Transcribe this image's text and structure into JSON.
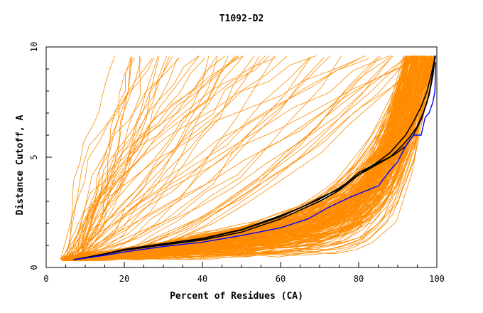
{
  "chart_data": {
    "type": "line",
    "title": "T1092-D2",
    "xlabel": "Percent of Residues (CA)",
    "ylabel": "Distance Cutoff, A",
    "xlim": [
      0,
      100
    ],
    "ylim": [
      0,
      10
    ],
    "x_ticks": [
      0,
      20,
      40,
      60,
      80,
      100
    ],
    "y_ticks": [
      0,
      5,
      10
    ],
    "grid": false,
    "legend": "none",
    "colors": {
      "background_models": "#ff8c00",
      "black_models": "#000000",
      "blue_model": "#0000ff",
      "axes": "#000000"
    },
    "background_model_count": 260,
    "series": [
      {
        "color": "#000000",
        "x": [
          7,
          10,
          15,
          20,
          30,
          40,
          50,
          60,
          70,
          75,
          80,
          85,
          88,
          90,
          92,
          94,
          96,
          97.5,
          98.5,
          99.5
        ],
        "y": [
          0.35,
          0.45,
          0.6,
          0.8,
          1.05,
          1.3,
          1.7,
          2.3,
          3.1,
          3.6,
          4.2,
          4.8,
          5.2,
          5.6,
          6.0,
          6.6,
          7.3,
          8.0,
          8.7,
          9.5
        ]
      },
      {
        "color": "#000000",
        "x": [
          7,
          10,
          15,
          20,
          30,
          40,
          50,
          60,
          70,
          75,
          80,
          84,
          88,
          91,
          93,
          95,
          96.5,
          98,
          99,
          99.6
        ],
        "y": [
          0.35,
          0.45,
          0.6,
          0.78,
          1.02,
          1.25,
          1.6,
          2.2,
          3.0,
          3.5,
          4.2,
          4.6,
          5.0,
          5.5,
          5.9,
          6.4,
          7.0,
          7.8,
          8.7,
          9.6
        ]
      },
      {
        "color": "#000000",
        "x": [
          7,
          10,
          15,
          20,
          30,
          40,
          50,
          60,
          65,
          70,
          75,
          80,
          85,
          89,
          92,
          94,
          96,
          97.5,
          98.5,
          99.5
        ],
        "y": [
          0.35,
          0.45,
          0.62,
          0.82,
          1.08,
          1.32,
          1.72,
          2.35,
          2.7,
          3.15,
          3.55,
          4.3,
          4.75,
          5.1,
          5.5,
          6.0,
          6.7,
          7.5,
          8.3,
          9.6
        ]
      },
      {
        "color": "#0000ff",
        "x": [
          7,
          10,
          15,
          20,
          30,
          40,
          50,
          60,
          67,
          72,
          78,
          85,
          88,
          90,
          92,
          94,
          96,
          97,
          98,
          99,
          99.5,
          99.7
        ],
        "y": [
          0.35,
          0.42,
          0.55,
          0.7,
          0.95,
          1.15,
          1.45,
          1.8,
          2.2,
          2.7,
          3.2,
          3.7,
          4.4,
          4.8,
          5.5,
          6.0,
          6.0,
          6.8,
          7.0,
          7.5,
          8.0,
          9.3
        ]
      }
    ]
  }
}
